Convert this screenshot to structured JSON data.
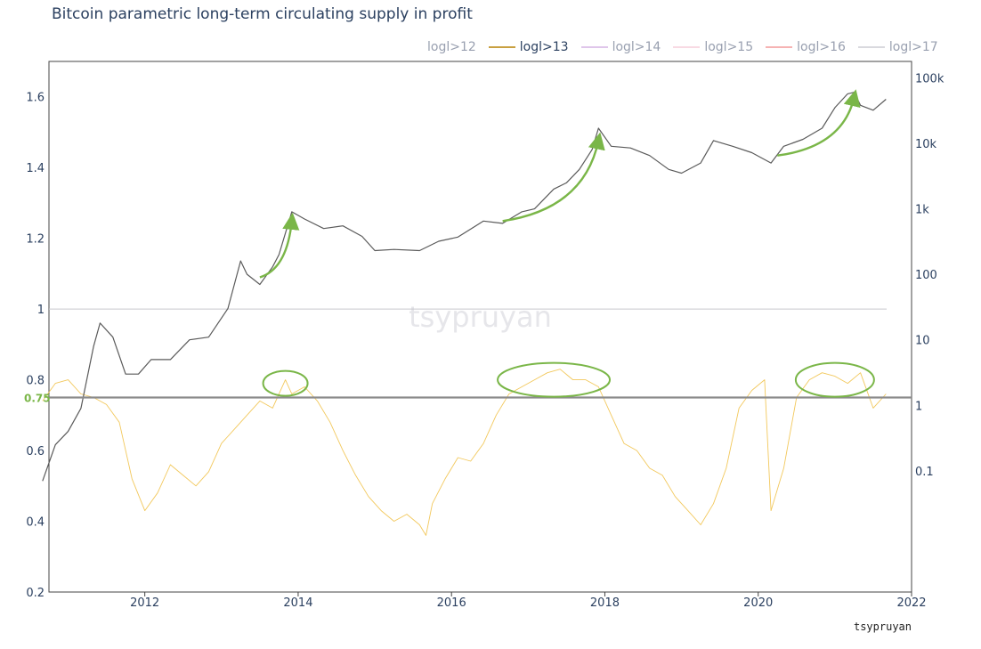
{
  "title": "Bitcoin parametric long-term circulating supply in profit",
  "watermark": "tsypruyan",
  "credit": "tsypruyan",
  "legend": [
    {
      "label": "logl>12",
      "color": "#1f77b4",
      "visible": false
    },
    {
      "label": "logl>13",
      "color": "#c8a040",
      "visible": true
    },
    {
      "label": "logl>14",
      "color": "#c9a0dc",
      "visible": false
    },
    {
      "label": "logl>15",
      "color": "#f4c2d0",
      "visible": false
    },
    {
      "label": "logl>16",
      "color": "#f08080",
      "visible": false
    },
    {
      "label": "logl>17",
      "color": "#c0c0c8",
      "visible": false
    }
  ],
  "chart_data": {
    "type": "line",
    "title": "Bitcoin parametric long-term circulating supply in profit",
    "x_ticks": [
      "2012",
      "2014",
      "2016",
      "2018",
      "2020",
      "2022"
    ],
    "y_left_ticks": [
      "0.2",
      "0.4",
      "0.6",
      "0.8",
      "1",
      "1.2",
      "1.4",
      "1.6"
    ],
    "y_left_range": [
      0.2,
      1.7
    ],
    "y_right_ticks": [
      "0.1",
      "1",
      "10",
      "100",
      "1k",
      "10k",
      "100k"
    ],
    "y_right_scale": "log",
    "threshold": {
      "label": "0.75",
      "value": 0.75,
      "color": "#7ab648"
    },
    "reference_line": {
      "value": 1.0
    },
    "series": [
      {
        "name": "logl>13",
        "axis": "left",
        "color": "#f2c85c",
        "x": [
          "2010-09",
          "2010-11",
          "2011-01",
          "2011-03",
          "2011-05",
          "2011-07",
          "2011-09",
          "2011-11",
          "2012-01",
          "2012-03",
          "2012-05",
          "2012-07",
          "2012-09",
          "2012-11",
          "2013-01",
          "2013-03",
          "2013-05",
          "2013-07",
          "2013-09",
          "2013-11",
          "2013-12",
          "2014-02",
          "2014-04",
          "2014-06",
          "2014-08",
          "2014-10",
          "2014-12",
          "2015-02",
          "2015-04",
          "2015-06",
          "2015-08",
          "2015-09",
          "2015-10",
          "2015-12",
          "2016-02",
          "2016-04",
          "2016-06",
          "2016-08",
          "2016-10",
          "2016-12",
          "2017-02",
          "2017-04",
          "2017-06",
          "2017-08",
          "2017-10",
          "2017-12",
          "2018-02",
          "2018-04",
          "2018-06",
          "2018-08",
          "2018-10",
          "2018-12",
          "2019-02",
          "2019-04",
          "2019-06",
          "2019-08",
          "2019-10",
          "2019-12",
          "2020-02",
          "2020-03",
          "2020-05",
          "2020-07",
          "2020-09",
          "2020-11",
          "2021-01",
          "2021-03",
          "2021-05",
          "2021-07",
          "2021-09"
        ],
        "y": [
          0.74,
          0.79,
          0.8,
          0.76,
          0.75,
          0.73,
          0.68,
          0.52,
          0.43,
          0.48,
          0.56,
          0.53,
          0.5,
          0.54,
          0.62,
          0.66,
          0.7,
          0.74,
          0.72,
          0.8,
          0.76,
          0.78,
          0.74,
          0.68,
          0.6,
          0.53,
          0.47,
          0.43,
          0.4,
          0.42,
          0.39,
          0.36,
          0.45,
          0.52,
          0.58,
          0.57,
          0.62,
          0.7,
          0.76,
          0.78,
          0.8,
          0.82,
          0.83,
          0.8,
          0.8,
          0.78,
          0.7,
          0.62,
          0.6,
          0.55,
          0.53,
          0.47,
          0.43,
          0.39,
          0.45,
          0.55,
          0.72,
          0.77,
          0.8,
          0.43,
          0.55,
          0.75,
          0.8,
          0.82,
          0.81,
          0.79,
          0.82,
          0.72,
          0.76
        ]
      },
      {
        "name": "price",
        "axis": "right",
        "color": "#5a5a5a",
        "x": [
          "2010-09",
          "2010-11",
          "2011-01",
          "2011-03",
          "2011-05",
          "2011-06",
          "2011-08",
          "2011-10",
          "2011-12",
          "2012-02",
          "2012-05",
          "2012-08",
          "2012-11",
          "2013-02",
          "2013-04",
          "2013-05",
          "2013-07",
          "2013-09",
          "2013-10",
          "2013-12",
          "2014-02",
          "2014-05",
          "2014-08",
          "2014-11",
          "2015-01",
          "2015-04",
          "2015-08",
          "2015-11",
          "2016-02",
          "2016-06",
          "2016-09",
          "2016-12",
          "2017-02",
          "2017-05",
          "2017-07",
          "2017-09",
          "2017-11",
          "2017-12",
          "2018-02",
          "2018-05",
          "2018-08",
          "2018-11",
          "2019-01",
          "2019-04",
          "2019-06",
          "2019-09",
          "2019-12",
          "2020-03",
          "2020-05",
          "2020-08",
          "2020-11",
          "2021-01",
          "2021-03",
          "2021-04",
          "2021-05",
          "2021-07",
          "2021-09"
        ],
        "y": [
          0.07,
          0.25,
          0.4,
          0.9,
          8,
          18,
          11,
          3,
          3,
          5,
          5,
          10,
          11,
          30,
          160,
          100,
          70,
          130,
          200,
          900,
          700,
          500,
          550,
          380,
          230,
          240,
          230,
          320,
          370,
          650,
          600,
          900,
          1000,
          2000,
          2500,
          4000,
          8000,
          17000,
          9000,
          8500,
          6500,
          4000,
          3500,
          5000,
          11000,
          9000,
          7200,
          5000,
          9000,
          11500,
          17000,
          35000,
          57000,
          60000,
          38000,
          32000,
          47000
        ]
      }
    ],
    "annotations": [
      {
        "type": "arrow",
        "from": [
          "2013-07",
          90
        ],
        "to": [
          "2013-12",
          650
        ]
      },
      {
        "type": "arrow",
        "from": [
          "2016-09",
          650
        ],
        "to": [
          "2017-12",
          11000
        ]
      },
      {
        "type": "arrow",
        "from": [
          "2020-04",
          6500
        ],
        "to": [
          "2021-04",
          50000
        ]
      },
      {
        "type": "circle",
        "cx": "2013-11",
        "cy": 0.79
      },
      {
        "type": "circle",
        "cx": "2017-05",
        "cy": 0.8
      },
      {
        "type": "circle",
        "cx": "2021-01",
        "cy": 0.8
      }
    ]
  }
}
